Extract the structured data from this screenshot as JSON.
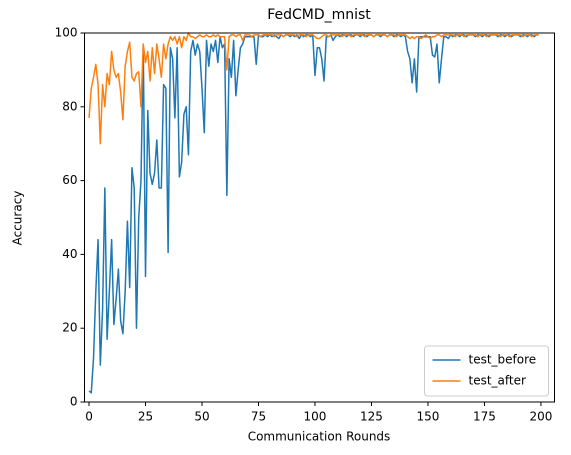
{
  "chart_data": {
    "type": "line",
    "title": "FedCMD_mnist",
    "xlabel": "Communication Rounds",
    "ylabel": "Accuracy",
    "x": [
      0,
      1,
      2,
      3,
      4,
      5,
      6,
      7,
      8,
      9,
      10,
      11,
      12,
      13,
      14,
      15,
      16,
      17,
      18,
      19,
      20,
      21,
      22,
      23,
      24,
      25,
      26,
      27,
      28,
      29,
      30,
      31,
      32,
      33,
      34,
      35,
      36,
      37,
      38,
      39,
      40,
      41,
      42,
      43,
      44,
      45,
      46,
      47,
      48,
      49,
      50,
      51,
      52,
      53,
      54,
      55,
      56,
      57,
      58,
      59,
      60,
      61,
      62,
      63,
      64,
      65,
      66,
      67,
      68,
      69,
      70,
      71,
      72,
      73,
      74,
      75,
      76,
      77,
      78,
      79,
      80,
      81,
      82,
      83,
      84,
      85,
      86,
      87,
      88,
      89,
      90,
      91,
      92,
      93,
      94,
      95,
      96,
      97,
      98,
      99,
      100,
      101,
      102,
      103,
      104,
      105,
      106,
      107,
      108,
      109,
      110,
      111,
      112,
      113,
      114,
      115,
      116,
      117,
      118,
      119,
      120,
      121,
      122,
      123,
      124,
      125,
      126,
      127,
      128,
      129,
      130,
      131,
      132,
      133,
      134,
      135,
      136,
      137,
      138,
      139,
      140,
      141,
      142,
      143,
      144,
      145,
      146,
      147,
      148,
      149,
      150,
      151,
      152,
      153,
      154,
      155,
      156,
      157,
      158,
      159,
      160,
      161,
      162,
      163,
      164,
      165,
      166,
      167,
      168,
      169,
      170,
      171,
      172,
      173,
      174,
      175,
      176,
      177,
      178,
      179,
      180,
      181,
      182,
      183,
      184,
      185,
      186,
      187,
      188,
      189,
      190,
      191,
      192,
      193,
      194,
      195,
      196,
      197,
      198,
      199
    ],
    "series": [
      {
        "name": "test_before",
        "color": "#1f77b4",
        "values": [
          3,
          2.5,
          12,
          30,
          44,
          10,
          25,
          58,
          17,
          30,
          44,
          21,
          28,
          36,
          22,
          18.5,
          30,
          49,
          31,
          63.5,
          58,
          20,
          50,
          60,
          97,
          34,
          79,
          62,
          59,
          62,
          71,
          58,
          58,
          86,
          85,
          40.5,
          96,
          93,
          77,
          96,
          61,
          65,
          78,
          80,
          67,
          95,
          98,
          94,
          97,
          95,
          85,
          73,
          98,
          91,
          97,
          95,
          98,
          92,
          99,
          96,
          97,
          56,
          93,
          88,
          98,
          83,
          90,
          96,
          97,
          99,
          99,
          99,
          99,
          99,
          91.5,
          99.5,
          99,
          99,
          99.5,
          99,
          99.5,
          99,
          99.5,
          99,
          98.5,
          99.5,
          99,
          99.5,
          99.5,
          99,
          99.5,
          99,
          99.5,
          98.5,
          99.5,
          99,
          99.5,
          99.5,
          99,
          99.5,
          88.5,
          96,
          96,
          93,
          87,
          99,
          99,
          99.5,
          98,
          99,
          99.5,
          99,
          99.5,
          99.5,
          99,
          99.5,
          99.5,
          99,
          99.5,
          99.5,
          99,
          99.5,
          99.5,
          99,
          99.5,
          99.5,
          99,
          99.5,
          99.5,
          99,
          99.5,
          99.5,
          99,
          99.5,
          99.5,
          99,
          99.5,
          99.5,
          99,
          99.5,
          99,
          95,
          93,
          86.5,
          93,
          84,
          99,
          99,
          99,
          99,
          99,
          99,
          94,
          93.5,
          97,
          86.5,
          93,
          99,
          99,
          98.5,
          99.5,
          99,
          99.5,
          99.5,
          99,
          99.5,
          99.5,
          99,
          99.5,
          99.5,
          99.5,
          99,
          99.5,
          99.5,
          99,
          99.5,
          99.5,
          99,
          99.5,
          99.5,
          99.5,
          99,
          99.5,
          99.5,
          99,
          99.5,
          99.5,
          99,
          99.5,
          99.5,
          99.5,
          99,
          99.5,
          99.5,
          99,
          99.5,
          99.5,
          99,
          99.5,
          99.5
        ]
      },
      {
        "name": "test_after",
        "color": "#ff7f0e",
        "values": [
          77,
          85,
          88,
          91.5,
          86,
          70,
          86,
          80,
          89,
          86,
          95,
          90,
          88,
          89,
          84,
          76.5,
          91,
          95,
          97.5,
          88,
          87,
          89,
          89.5,
          80,
          97,
          92,
          95,
          87,
          96,
          89,
          97,
          93,
          88,
          97,
          93,
          97,
          99,
          98,
          99,
          97,
          99,
          96,
          99,
          98,
          100,
          99,
          99,
          98.5,
          99,
          99.5,
          99,
          99,
          99.5,
          99,
          99,
          99.5,
          99,
          99.5,
          99,
          99,
          99,
          90,
          99,
          99.5,
          99.5,
          99,
          99.5,
          99.5,
          98,
          99.5,
          99.5,
          99.5,
          99,
          99.5,
          99.5,
          99.5,
          99,
          99.5,
          99.5,
          99.5,
          99.5,
          99.5,
          99,
          99.5,
          99.5,
          99.5,
          99,
          99.5,
          99.5,
          99.5,
          99.5,
          99.5,
          99,
          99.5,
          99.5,
          99.5,
          99,
          99.5,
          99.5,
          99.5,
          99,
          98.5,
          98.5,
          99,
          99.5,
          99.5,
          99,
          99.5,
          99.5,
          99.5,
          99.5,
          99.5,
          99,
          99.5,
          99.5,
          99.5,
          99,
          99.5,
          99.5,
          99.5,
          99.5,
          99.5,
          99,
          99.5,
          99.5,
          99.5,
          99,
          99.5,
          99.5,
          99.5,
          99.5,
          99.5,
          99,
          99.5,
          99.5,
          99.5,
          99,
          99.5,
          99.5,
          99.5,
          99.5,
          99,
          98.5,
          99,
          98.5,
          99,
          99,
          98.5,
          99,
          99.5,
          99,
          98.5,
          99,
          99,
          99.5,
          99.5,
          99,
          99.5,
          99.5,
          99.5,
          99.5,
          99.5,
          99,
          99.5,
          99.5,
          99.5,
          99,
          99.5,
          99.5,
          99.5,
          99.5,
          99.5,
          99,
          99.5,
          99.5,
          99.5,
          99,
          99.5,
          99.5,
          99.5,
          99.5,
          99.5,
          99,
          99.5,
          99.5,
          99.5,
          99,
          99.5,
          99.5,
          99.5,
          99.5,
          99.5,
          99,
          99.5,
          99.5,
          99.5,
          99,
          99.5,
          99.5,
          99.5
        ]
      }
    ],
    "xlim": [
      -2,
      206
    ],
    "ylim": [
      0,
      100
    ],
    "xticks": [
      0,
      25,
      50,
      75,
      100,
      125,
      150,
      175,
      200
    ],
    "yticks": [
      0,
      20,
      40,
      60,
      80,
      100
    ],
    "legend": "lower right"
  }
}
